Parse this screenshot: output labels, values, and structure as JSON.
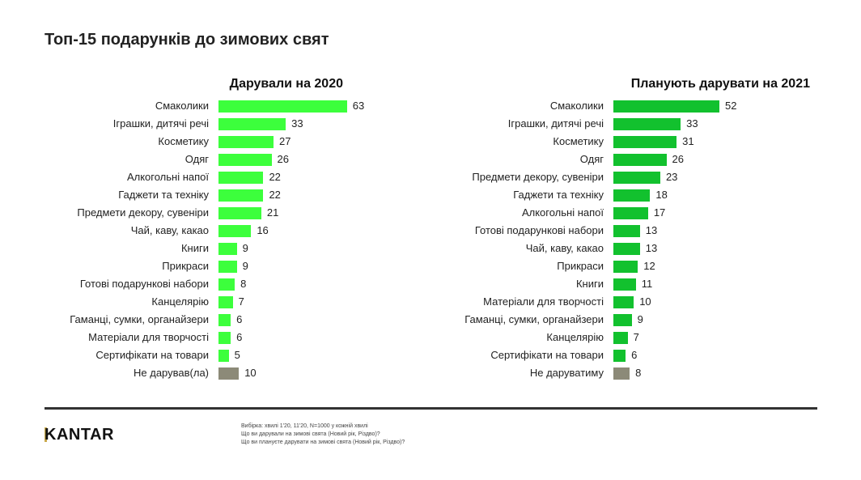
{
  "title": "Топ-15 подарунків до зимових свят",
  "colors": {
    "left_bar": "#3cff3c",
    "right_bar": "#12c12e",
    "none_bar": "#8c8a78"
  },
  "chart_data": [
    {
      "type": "bar",
      "orientation": "horizontal",
      "title": "Дарували на 2020",
      "categories": [
        "Смаколики",
        "Іграшки, дитячі речі",
        "Косметику",
        "Одяг",
        "Алкогольні напої",
        "Гаджети та техніку",
        "Предмети декору, сувеніри",
        "Чай, каву, какао",
        "Книги",
        "Прикраси",
        "Готові подарункові набори",
        "Канцелярію",
        "Гаманці, сумки, органайзери",
        "Матеріали для творчості",
        "Сертифікати на товари",
        "Не дарував(ла)"
      ],
      "values": [
        63,
        33,
        27,
        26,
        22,
        22,
        21,
        16,
        9,
        9,
        8,
        7,
        6,
        6,
        5,
        10
      ],
      "data_labels": true
    },
    {
      "type": "bar",
      "orientation": "horizontal",
      "title": "Планують дарувати на 2021",
      "categories": [
        "Смаколики",
        "Іграшки, дитячі речі",
        "Косметику",
        "Одяг",
        "Предмети декору, сувеніри",
        "Гаджети та техніку",
        "Алкогольні напої",
        "Готові подарункові набори",
        "Чай, каву, какао",
        "Прикраси",
        "Книги",
        "Матеріали для творчості",
        "Гаманці, сумки, органайзери",
        "Канцелярію",
        "Сертифікати на товари",
        "Не даруватиму"
      ],
      "values": [
        52,
        33,
        31,
        26,
        23,
        18,
        17,
        13,
        13,
        12,
        11,
        10,
        9,
        7,
        6,
        8
      ],
      "data_labels": true
    }
  ],
  "footer": {
    "logo": "KANTAR",
    "notes": [
      "Вибірка: хвилі 1'20, 11'20, N=1000 у кожній хвилі",
      "Що ви дарували на зимові свята (Новий рік, Різдво)?",
      "Що ви плануєте дарувати на зимові свята (Новий рік, Різдво)?"
    ]
  }
}
